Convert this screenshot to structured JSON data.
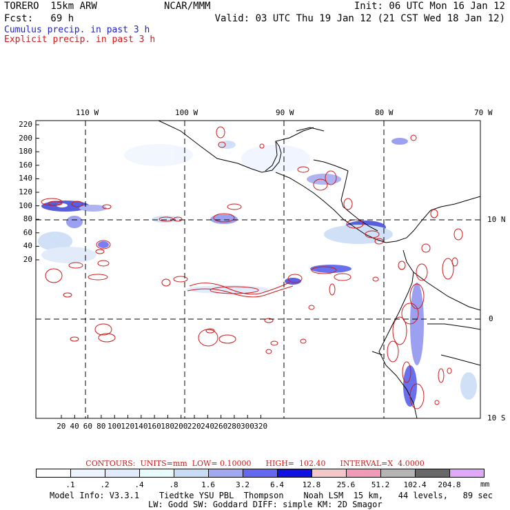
{
  "header": {
    "model": "TORERO  15km ARW",
    "org": "NCAR/MMM",
    "init": "Init: 06 UTC Mon 16 Jan 12",
    "fcst": "Fcst:   69 h",
    "valid": "Valid: 03 UTC Thu 19 Jan 12 (21 CST Wed 18 Jan 12)",
    "legend_cumulus": "Cumulus precip. in past 3 h",
    "legend_explicit": "Explicit precip. in past 3 h"
  },
  "map": {
    "lon_labels": [
      "110 W",
      "100 W",
      "90 W",
      "80 W",
      "70 W"
    ],
    "lat_labels": [
      "10 N",
      "0",
      "10 S"
    ],
    "x_ticks": [
      "20",
      "40",
      "60",
      "80",
      "100",
      "120",
      "140",
      "160",
      "180",
      "200",
      "220",
      "240",
      "260",
      "280",
      "300",
      "320"
    ],
    "y_ticks": [
      "220",
      "200",
      "180",
      "160",
      "140",
      "120",
      "100",
      "80",
      "60",
      "40",
      "20"
    ],
    "colors": {
      "cumulus": "#2020c8",
      "explicit": "#d01818",
      "coast": "#000000"
    }
  },
  "contours": {
    "text": "CONTOURS:  UNITS=mm  LOW= 0.10000      HIGH=  102.40      INTERVAL=X  4.0000"
  },
  "colorbar": {
    "labels": [
      ".1",
      ".2",
      ".4",
      ".8",
      "1.6",
      "3.2",
      "6.4",
      "12.8",
      "25.6",
      "51.2",
      "102.4",
      "204.8"
    ],
    "units": "mm",
    "colors": [
      "#ffffff",
      "#eef4ff",
      "#e0ecfb",
      "#e8fbfb",
      "#c8dcf6",
      "#a0a8f0",
      "#6468f0",
      "#1010e0",
      "#f4c8c8",
      "#f09ab8",
      "#b4b4b4",
      "#686868",
      "#e0a8f8"
    ]
  },
  "footer": {
    "line1": "Model Info: V3.3.1    Tiedtke YSU PBL  Thompson    Noah LSM  15 km,   44 levels,   89 sec",
    "line2": "LW: Godd SW: Goddard DIFF: simple KM: 2D Smagor"
  }
}
